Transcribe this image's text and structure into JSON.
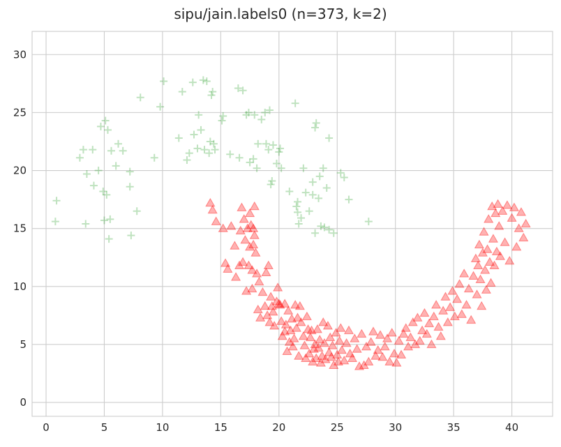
{
  "chart_data": {
    "type": "scatter",
    "title": "sipu/jain.labels0 (n=373, k=2)",
    "xlabel": "",
    "ylabel": "",
    "xlim": [
      -1.2,
      43.5
    ],
    "ylim": [
      -1.2,
      32.0
    ],
    "xticks": [
      0,
      5,
      10,
      15,
      20,
      25,
      30,
      35,
      40
    ],
    "yticks": [
      0,
      5,
      10,
      15,
      20,
      25,
      30
    ],
    "grid": true,
    "legend": "none",
    "series": [
      {
        "marker": "plus",
        "color": "#2ca02c",
        "opacity": 0.3,
        "points": [
          [
            0.8,
            15.6
          ],
          [
            0.9,
            17.4
          ],
          [
            2.9,
            21.1
          ],
          [
            3.2,
            21.8
          ],
          [
            3.4,
            15.4
          ],
          [
            3.5,
            19.7
          ],
          [
            4.0,
            21.8
          ],
          [
            4.1,
            18.7
          ],
          [
            4.5,
            20.0
          ],
          [
            4.7,
            23.8
          ],
          [
            4.9,
            18.2
          ],
          [
            5.0,
            15.7
          ],
          [
            5.1,
            24.3
          ],
          [
            5.2,
            17.9
          ],
          [
            5.3,
            23.5
          ],
          [
            5.4,
            14.1
          ],
          [
            5.5,
            15.8
          ],
          [
            5.6,
            21.7
          ],
          [
            6.0,
            20.4
          ],
          [
            6.2,
            22.3
          ],
          [
            6.6,
            21.7
          ],
          [
            7.2,
            19.9
          ],
          [
            7.2,
            18.6
          ],
          [
            7.3,
            14.4
          ],
          [
            7.8,
            16.5
          ],
          [
            8.1,
            26.3
          ],
          [
            9.3,
            21.1
          ],
          [
            9.8,
            25.5
          ],
          [
            10.1,
            27.7
          ],
          [
            11.4,
            22.8
          ],
          [
            11.7,
            26.8
          ],
          [
            12.1,
            20.9
          ],
          [
            12.3,
            21.5
          ],
          [
            12.6,
            27.6
          ],
          [
            12.7,
            23.1
          ],
          [
            13.0,
            21.9
          ],
          [
            13.1,
            24.8
          ],
          [
            13.3,
            23.5
          ],
          [
            13.5,
            27.8
          ],
          [
            13.6,
            21.8
          ],
          [
            13.8,
            27.7
          ],
          [
            14.0,
            21.5
          ],
          [
            14.1,
            22.5
          ],
          [
            14.2,
            26.5
          ],
          [
            14.3,
            26.8
          ],
          [
            14.4,
            22.3
          ],
          [
            14.5,
            21.8
          ],
          [
            15.1,
            24.3
          ],
          [
            15.2,
            24.7
          ],
          [
            15.8,
            21.4
          ],
          [
            16.5,
            27.1
          ],
          [
            16.6,
            21.1
          ],
          [
            16.9,
            26.9
          ],
          [
            17.2,
            24.8
          ],
          [
            17.4,
            25.0
          ],
          [
            17.5,
            20.7
          ],
          [
            17.8,
            21.0
          ],
          [
            17.9,
            24.8
          ],
          [
            18.1,
            20.2
          ],
          [
            18.2,
            22.3
          ],
          [
            18.5,
            24.4
          ],
          [
            18.8,
            25.0
          ],
          [
            18.9,
            22.3
          ],
          [
            19.1,
            21.8
          ],
          [
            19.2,
            25.2
          ],
          [
            19.3,
            18.8
          ],
          [
            19.4,
            19.1
          ],
          [
            19.5,
            22.2
          ],
          [
            19.8,
            20.6
          ],
          [
            20.0,
            21.6
          ],
          [
            20.1,
            21.9
          ],
          [
            20.2,
            20.2
          ],
          [
            20.9,
            18.2
          ],
          [
            21.4,
            25.8
          ],
          [
            21.5,
            16.9
          ],
          [
            21.6,
            16.4
          ],
          [
            21.6,
            17.3
          ],
          [
            21.7,
            15.4
          ],
          [
            21.9,
            15.9
          ],
          [
            22.1,
            20.2
          ],
          [
            22.3,
            18.1
          ],
          [
            22.6,
            16.5
          ],
          [
            22.9,
            17.9
          ],
          [
            22.9,
            19.0
          ],
          [
            23.1,
            23.7
          ],
          [
            23.1,
            14.6
          ],
          [
            23.2,
            24.1
          ],
          [
            23.4,
            17.6
          ],
          [
            23.5,
            19.5
          ],
          [
            23.6,
            15.2
          ],
          [
            23.8,
            20.2
          ],
          [
            23.9,
            15.1
          ],
          [
            24.1,
            18.5
          ],
          [
            24.3,
            22.8
          ],
          [
            24.3,
            14.9
          ],
          [
            24.7,
            14.6
          ],
          [
            25.3,
            19.8
          ],
          [
            25.6,
            19.4
          ],
          [
            26.0,
            17.5
          ],
          [
            27.7,
            15.6
          ]
        ]
      },
      {
        "marker": "triangle",
        "color": "#ff0000",
        "opacity": 0.3,
        "points": [
          [
            14.1,
            17.2
          ],
          [
            14.3,
            16.6
          ],
          [
            14.6,
            15.6
          ],
          [
            15.2,
            15.0
          ],
          [
            15.4,
            12.0
          ],
          [
            15.6,
            11.5
          ],
          [
            15.9,
            15.2
          ],
          [
            16.2,
            13.5
          ],
          [
            16.3,
            10.8
          ],
          [
            16.6,
            11.8
          ],
          [
            16.7,
            14.8
          ],
          [
            16.8,
            16.8
          ],
          [
            16.9,
            12.1
          ],
          [
            17.0,
            15.8
          ],
          [
            17.1,
            14.0
          ],
          [
            17.2,
            9.6
          ],
          [
            17.3,
            15.0
          ],
          [
            17.4,
            11.8
          ],
          [
            17.5,
            16.3
          ],
          [
            17.5,
            13.4
          ],
          [
            17.6,
            15.3
          ],
          [
            17.7,
            11.4
          ],
          [
            17.7,
            9.8
          ],
          [
            17.8,
            15.0
          ],
          [
            17.8,
            13.6
          ],
          [
            17.9,
            16.9
          ],
          [
            17.9,
            14.4
          ],
          [
            18.0,
            12.9
          ],
          [
            18.1,
            11.1
          ],
          [
            18.2,
            8.0
          ],
          [
            18.3,
            10.4
          ],
          [
            18.4,
            7.3
          ],
          [
            18.6,
            9.5
          ],
          [
            18.8,
            8.3
          ],
          [
            18.9,
            11.2
          ],
          [
            19.0,
            7.5
          ],
          [
            19.1,
            11.8
          ],
          [
            19.2,
            6.9
          ],
          [
            19.3,
            9.1
          ],
          [
            19.4,
            8.3
          ],
          [
            19.5,
            7.8
          ],
          [
            19.6,
            6.6
          ],
          [
            19.8,
            8.7
          ],
          [
            19.9,
            9.9
          ],
          [
            20.0,
            8.5
          ],
          [
            20.1,
            8.4
          ],
          [
            20.2,
            7.0
          ],
          [
            20.3,
            5.7
          ],
          [
            20.5,
            6.1
          ],
          [
            20.5,
            8.5
          ],
          [
            20.6,
            6.7
          ],
          [
            20.7,
            4.4
          ],
          [
            20.8,
            7.9
          ],
          [
            20.9,
            5.2
          ],
          [
            21.0,
            6.2
          ],
          [
            21.1,
            7.2
          ],
          [
            21.2,
            4.8
          ],
          [
            21.3,
            5.5
          ],
          [
            21.4,
            8.4
          ],
          [
            21.5,
            6.4
          ],
          [
            21.6,
            7.3
          ],
          [
            21.7,
            4.0
          ],
          [
            21.8,
            8.3
          ],
          [
            21.9,
            6.9
          ],
          [
            22.1,
            5.7
          ],
          [
            22.2,
            4.9
          ],
          [
            22.3,
            3.8
          ],
          [
            22.4,
            7.4
          ],
          [
            22.5,
            6.3
          ],
          [
            22.6,
            4.2
          ],
          [
            22.7,
            5.6
          ],
          [
            22.8,
            6.2
          ],
          [
            22.9,
            3.5
          ],
          [
            23.0,
            4.6
          ],
          [
            23.1,
            5.0
          ],
          [
            23.2,
            3.8
          ],
          [
            23.3,
            6.3
          ],
          [
            23.4,
            4.7
          ],
          [
            23.5,
            5.4
          ],
          [
            23.6,
            3.4
          ],
          [
            23.7,
            4.0
          ],
          [
            23.8,
            6.9
          ],
          [
            23.9,
            5.1
          ],
          [
            24.0,
            3.7
          ],
          [
            24.2,
            6.6
          ],
          [
            24.3,
            4.3
          ],
          [
            24.4,
            5.6
          ],
          [
            24.5,
            3.9
          ],
          [
            24.6,
            4.9
          ],
          [
            24.7,
            3.2
          ],
          [
            24.9,
            6.0
          ],
          [
            25.0,
            4.1
          ],
          [
            25.1,
            3.5
          ],
          [
            25.2,
            5.3
          ],
          [
            25.3,
            6.4
          ],
          [
            25.4,
            4.5
          ],
          [
            25.6,
            3.6
          ],
          [
            25.8,
            5.1
          ],
          [
            26.0,
            6.2
          ],
          [
            26.1,
            4.2
          ],
          [
            26.3,
            3.8
          ],
          [
            26.5,
            5.5
          ],
          [
            26.7,
            4.6
          ],
          [
            26.9,
            3.1
          ],
          [
            27.1,
            5.9
          ],
          [
            27.3,
            3.2
          ],
          [
            27.5,
            4.8
          ],
          [
            27.7,
            3.5
          ],
          [
            27.9,
            5.2
          ],
          [
            28.1,
            6.1
          ],
          [
            28.3,
            4.0
          ],
          [
            28.5,
            4.5
          ],
          [
            28.7,
            5.8
          ],
          [
            28.9,
            3.9
          ],
          [
            29.1,
            4.8
          ],
          [
            29.3,
            5.5
          ],
          [
            29.5,
            3.5
          ],
          [
            29.7,
            6.0
          ],
          [
            29.9,
            4.2
          ],
          [
            30.1,
            3.4
          ],
          [
            30.3,
            5.3
          ],
          [
            30.5,
            4.1
          ],
          [
            30.7,
            5.9
          ],
          [
            30.9,
            6.4
          ],
          [
            31.1,
            4.8
          ],
          [
            31.3,
            5.6
          ],
          [
            31.5,
            6.9
          ],
          [
            31.7,
            5.0
          ],
          [
            31.9,
            7.3
          ],
          [
            32.1,
            5.3
          ],
          [
            32.3,
            6.2
          ],
          [
            32.5,
            7.7
          ],
          [
            32.7,
            5.9
          ],
          [
            32.9,
            6.8
          ],
          [
            33.1,
            5.0
          ],
          [
            33.3,
            7.4
          ],
          [
            33.5,
            8.4
          ],
          [
            33.7,
            6.5
          ],
          [
            33.9,
            5.7
          ],
          [
            34.1,
            7.9
          ],
          [
            34.3,
            9.1
          ],
          [
            34.5,
            6.9
          ],
          [
            34.7,
            8.2
          ],
          [
            34.9,
            9.6
          ],
          [
            35.1,
            7.4
          ],
          [
            35.3,
            8.9
          ],
          [
            35.5,
            10.2
          ],
          [
            35.7,
            7.6
          ],
          [
            35.9,
            11.1
          ],
          [
            36.1,
            8.4
          ],
          [
            36.3,
            9.8
          ],
          [
            36.5,
            7.1
          ],
          [
            36.7,
            10.9
          ],
          [
            36.9,
            12.4
          ],
          [
            37.0,
            9.3
          ],
          [
            37.1,
            11.8
          ],
          [
            37.2,
            13.6
          ],
          [
            37.3,
            10.6
          ],
          [
            37.4,
            8.3
          ],
          [
            37.5,
            12.9
          ],
          [
            37.6,
            14.7
          ],
          [
            37.7,
            11.4
          ],
          [
            37.8,
            9.7
          ],
          [
            37.9,
            13.2
          ],
          [
            38.0,
            15.8
          ],
          [
            38.1,
            12.1
          ],
          [
            38.2,
            10.3
          ],
          [
            38.3,
            16.9
          ],
          [
            38.4,
            14.1
          ],
          [
            38.5,
            11.8
          ],
          [
            38.6,
            16.3
          ],
          [
            38.7,
            13.0
          ],
          [
            38.8,
            17.1
          ],
          [
            38.9,
            15.2
          ],
          [
            39.0,
            12.6
          ],
          [
            39.2,
            16.5
          ],
          [
            39.4,
            13.8
          ],
          [
            39.6,
            17.0
          ],
          [
            39.8,
            12.2
          ],
          [
            40.0,
            15.9
          ],
          [
            40.2,
            16.8
          ],
          [
            40.4,
            13.4
          ],
          [
            40.6,
            15.0
          ],
          [
            40.8,
            16.4
          ],
          [
            41.0,
            14.2
          ],
          [
            41.2,
            15.4
          ]
        ]
      }
    ]
  }
}
